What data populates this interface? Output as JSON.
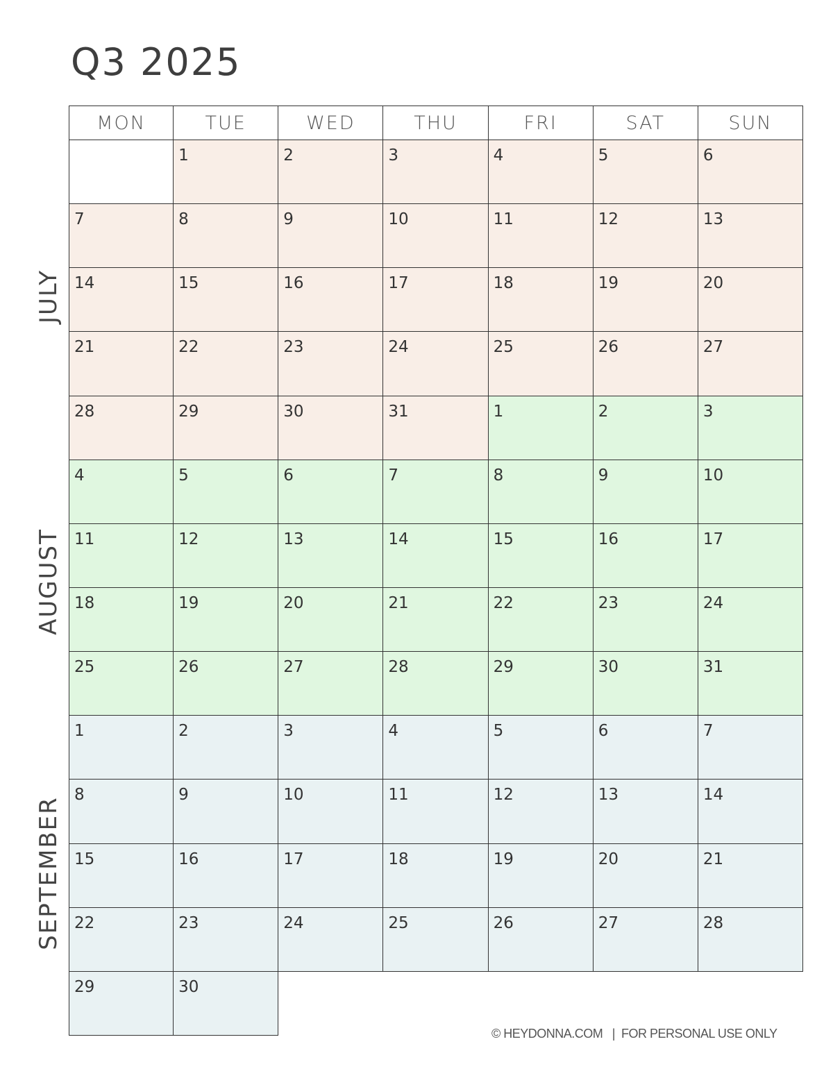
{
  "title": "Q3 2025",
  "weekdays": [
    "MON",
    "TUE",
    "WED",
    "THU",
    "FRI",
    "SAT",
    "SUN"
  ],
  "months": [
    {
      "name": "JULY",
      "color": "#f9eee7"
    },
    {
      "name": "AUGUST",
      "color": "#e0f7e0"
    },
    {
      "name": "SEPTEMBER",
      "color": "#e9f2f3"
    }
  ],
  "rows": [
    [
      null,
      [
        "1",
        0
      ],
      [
        "2",
        0
      ],
      [
        "3",
        0
      ],
      [
        "4",
        0
      ],
      [
        "5",
        0
      ],
      [
        "6",
        0
      ]
    ],
    [
      [
        "7",
        0
      ],
      [
        "8",
        0
      ],
      [
        "9",
        0
      ],
      [
        "10",
        0
      ],
      [
        "11",
        0
      ],
      [
        "12",
        0
      ],
      [
        "13",
        0
      ]
    ],
    [
      [
        "14",
        0
      ],
      [
        "15",
        0
      ],
      [
        "16",
        0
      ],
      [
        "17",
        0
      ],
      [
        "18",
        0
      ],
      [
        "19",
        0
      ],
      [
        "20",
        0
      ]
    ],
    [
      [
        "21",
        0
      ],
      [
        "22",
        0
      ],
      [
        "23",
        0
      ],
      [
        "24",
        0
      ],
      [
        "25",
        0
      ],
      [
        "26",
        0
      ],
      [
        "27",
        0
      ]
    ],
    [
      [
        "28",
        0
      ],
      [
        "29",
        0
      ],
      [
        "30",
        0
      ],
      [
        "31",
        0
      ],
      [
        "1",
        1
      ],
      [
        "2",
        1
      ],
      [
        "3",
        1
      ]
    ],
    [
      [
        "4",
        1
      ],
      [
        "5",
        1
      ],
      [
        "6",
        1
      ],
      [
        "7",
        1
      ],
      [
        "8",
        1
      ],
      [
        "9",
        1
      ],
      [
        "10",
        1
      ]
    ],
    [
      [
        "11",
        1
      ],
      [
        "12",
        1
      ],
      [
        "13",
        1
      ],
      [
        "14",
        1
      ],
      [
        "15",
        1
      ],
      [
        "16",
        1
      ],
      [
        "17",
        1
      ]
    ],
    [
      [
        "18",
        1
      ],
      [
        "19",
        1
      ],
      [
        "20",
        1
      ],
      [
        "21",
        1
      ],
      [
        "22",
        1
      ],
      [
        "23",
        1
      ],
      [
        "24",
        1
      ]
    ],
    [
      [
        "25",
        1
      ],
      [
        "26",
        1
      ],
      [
        "27",
        1
      ],
      [
        "28",
        1
      ],
      [
        "29",
        1
      ],
      [
        "30",
        1
      ],
      [
        "31",
        1
      ]
    ],
    [
      [
        "1",
        2
      ],
      [
        "2",
        2
      ],
      [
        "3",
        2
      ],
      [
        "4",
        2
      ],
      [
        "5",
        2
      ],
      [
        "6",
        2
      ],
      [
        "7",
        2
      ]
    ],
    [
      [
        "8",
        2
      ],
      [
        "9",
        2
      ],
      [
        "10",
        2
      ],
      [
        "11",
        2
      ],
      [
        "12",
        2
      ],
      [
        "13",
        2
      ],
      [
        "14",
        2
      ]
    ],
    [
      [
        "15",
        2
      ],
      [
        "16",
        2
      ],
      [
        "17",
        2
      ],
      [
        "18",
        2
      ],
      [
        "19",
        2
      ],
      [
        "20",
        2
      ],
      [
        "21",
        2
      ]
    ],
    [
      [
        "22",
        2
      ],
      [
        "23",
        2
      ],
      [
        "24",
        2
      ],
      [
        "25",
        2
      ],
      [
        "26",
        2
      ],
      [
        "27",
        2
      ],
      [
        "28",
        2
      ]
    ],
    [
      [
        "29",
        2
      ],
      [
        "30",
        2
      ],
      null,
      null,
      null,
      null,
      null
    ]
  ],
  "footer": "© HEYDONNA.COM   |  FOR PERSONAL USE ONLY"
}
